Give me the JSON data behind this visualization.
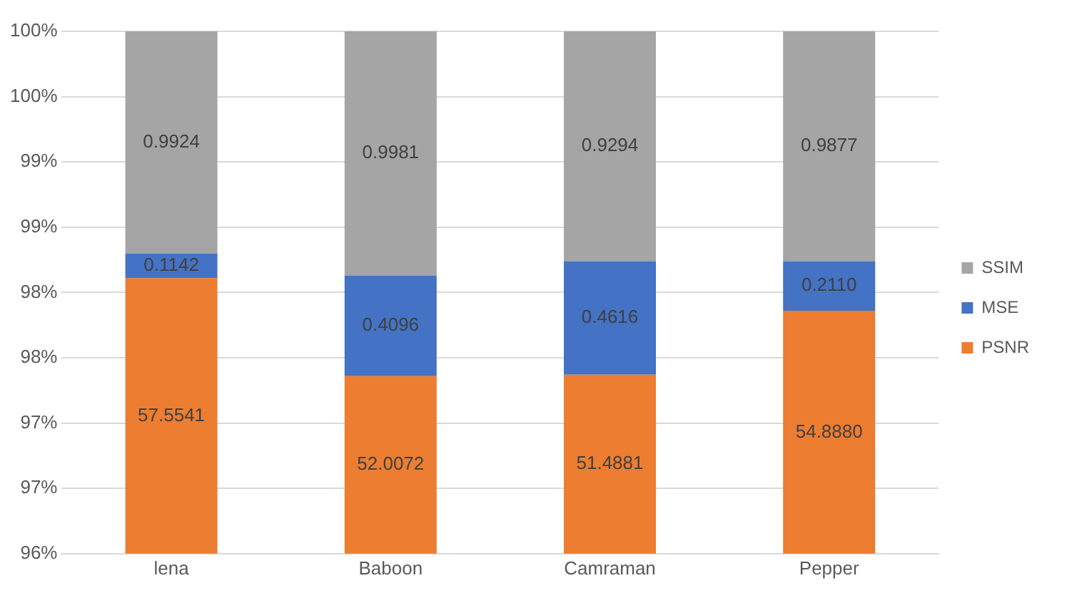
{
  "chart_data": {
    "type": "bar",
    "categories": [
      "lena",
      "Baboon",
      "Camraman",
      "Pepper"
    ],
    "series": [
      {
        "name": "PSNR",
        "color": "#ed7d31",
        "values": [
          98.11,
          97.36,
          97.37,
          97.86
        ],
        "base": [
          0,
          0,
          0,
          0
        ]
      },
      {
        "name": "MSE",
        "color": "#4472c4",
        "values": [
          0.19,
          0.77,
          0.87,
          0.38
        ],
        "base": [
          98.11,
          97.36,
          97.37,
          97.86
        ]
      },
      {
        "name": "SSIM",
        "color": "#a5a5a5",
        "values": [
          1.7,
          1.87,
          1.76,
          1.76
        ],
        "base": [
          98.3,
          98.13,
          98.24,
          98.24
        ]
      }
    ],
    "annotations": [
      "57.5541",
      "52.0072",
      "51.4881",
      "54.8880",
      "0.1142",
      "0.4096",
      "0.4616",
      "0.2110",
      "0.9924",
      "0.9981",
      "0.9294",
      "0.9877"
    ],
    "ylim": [
      96,
      100
    ],
    "yticks": [
      {
        "value": 96,
        "label": "96%"
      },
      {
        "value": 96.5,
        "label": "97%"
      },
      {
        "value": 97,
        "label": "97%"
      },
      {
        "value": 97.5,
        "label": "98%"
      },
      {
        "value": 98,
        "label": "98%"
      },
      {
        "value": 98.5,
        "label": "99%"
      },
      {
        "value": 99,
        "label": "99%"
      },
      {
        "value": 99.5,
        "label": "100%"
      },
      {
        "value": 100,
        "label": "100%"
      }
    ],
    "grid": "y",
    "legend": "right"
  }
}
